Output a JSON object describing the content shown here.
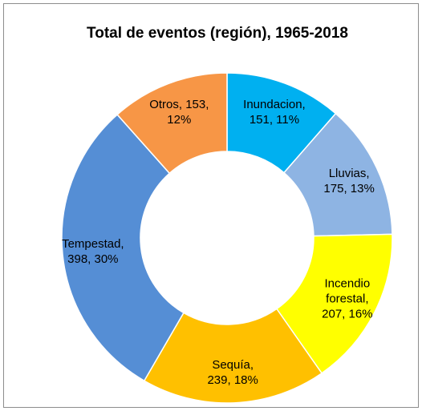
{
  "chart_data": {
    "type": "donut",
    "title": "Total de eventos (región), 1965-2018",
    "values": [
      151,
      175,
      207,
      239,
      398,
      153
    ],
    "value_labels": [
      "Inundacion, 151, 11%",
      "Lluvias, 175, 13%",
      "Incendio forestal, 207, 16%",
      "Sequía, 239, 18%",
      "Tempestad, 398, 30%",
      "Otros, 153, 12%"
    ],
    "colors": [
      "#00b0f0",
      "#8eb4e3",
      "#ffff00",
      "#ffc000",
      "#558ed5",
      "#f79646"
    ]
  }
}
